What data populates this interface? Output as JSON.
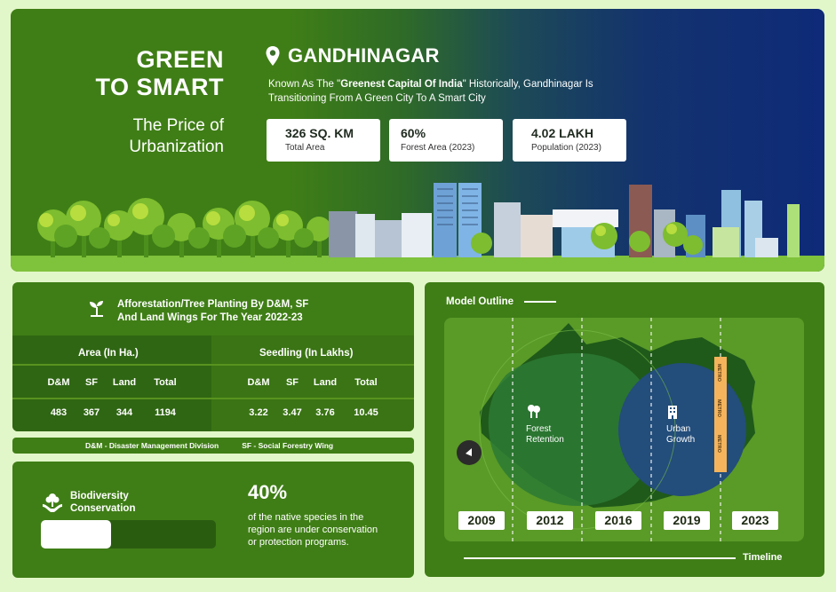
{
  "hero": {
    "title_line1": "GREEN",
    "title_line2": "TO SMART",
    "subtitle_line1": "The Price of",
    "subtitle_line2": "Urbanization",
    "city": "GANDHINAGAR",
    "desc_pre": "Known As The \"",
    "desc_bold": "Greenest Capital Of India",
    "desc_post": "\" Historically, Gandhinagar Is Transitioning From A Green City To A Smart City",
    "stats": [
      {
        "value": "326 SQ. KM",
        "label": "Total Area"
      },
      {
        "value": "60%",
        "label": "Forest Area (2023)"
      },
      {
        "value": "4.02 LAKH",
        "label": "Population (2023)"
      }
    ]
  },
  "afforestation": {
    "title_line1": "Afforestation/Tree Planting By D&M, SF",
    "title_line2": "And Land Wings For The Year 2022-23",
    "area_header": "Area (In Ha.)",
    "seedling_header": "Seedling (In Lakhs)",
    "columns": [
      "D&M",
      "SF",
      "Land",
      "Total"
    ],
    "area_values": [
      "483",
      "367",
      "344",
      "1194"
    ],
    "seedling_values": [
      "3.22",
      "3.47",
      "3.76",
      "10.45"
    ],
    "legend_dm": "D&M - Disaster Management Division",
    "legend_sf": "SF - Social Forestry Wing"
  },
  "biodiversity": {
    "title_line1": "Biodiversity",
    "title_line2": "Conservation",
    "percent": "40%",
    "percent_value": 0.4,
    "description": "of the native species in the region are under conservation or protection programs."
  },
  "model": {
    "title": "Model Outline",
    "forest_line1": "Forest",
    "forest_line2": "Retention",
    "urban_line1": "Urban",
    "urban_line2": "Growth",
    "metro_label": "METRO",
    "years": [
      "2009",
      "2012",
      "2016",
      "2019",
      "2023"
    ],
    "timeline_label": "Timeline"
  },
  "colors": {
    "panel_green": "#3f7e16",
    "dark_green": "#2f6613",
    "navy": "#0e2a78",
    "metro_orange": "#f5b45b"
  }
}
